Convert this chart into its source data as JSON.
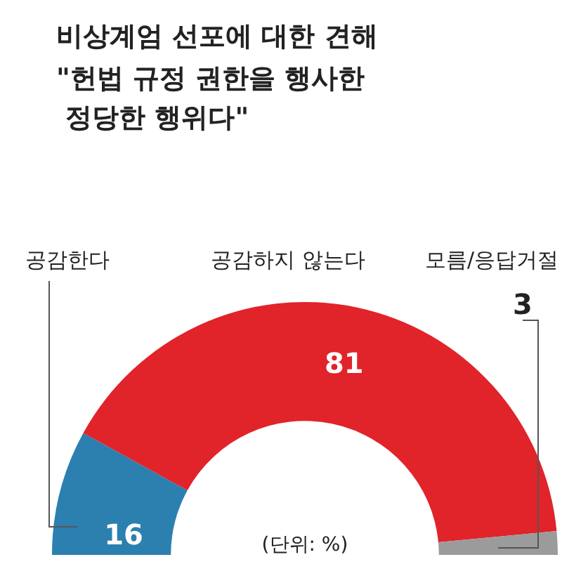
{
  "chart_data": {
    "type": "donut",
    "title": "비상계엄 선포에 대한 견해",
    "subtitle": "\"헌법 규정 권한을 행사한\n 정당한 행위다\"",
    "categories": [
      "공감한다",
      "공감하지 않는다",
      "모름/응답거절"
    ],
    "values": [
      16,
      81,
      3
    ],
    "colors": [
      "#2b80b0",
      "#e1232a",
      "#9b9b9b"
    ],
    "data_labels": true,
    "annotations": [
      "(단위: %)"
    ]
  }
}
